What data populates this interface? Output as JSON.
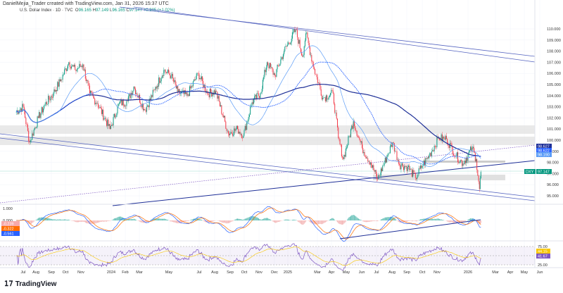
{
  "header": {
    "credit": "DanielMejia_Trader created with TradingView.com, Jan 31, 2026 15:37 UTC",
    "symbol": "U.S. Dollar Index · 1D · TVC",
    "o_label": "O",
    "o": "96.165",
    "h_label": "H",
    "h": "97.149",
    "l_label": "L",
    "l": "96.165",
    "c_label": "C",
    "c": "97.147",
    "change": "+0.985 (+1.02%)"
  },
  "logo": {
    "text": "TradingView"
  },
  "colors": {
    "up": "#089981",
    "down": "#f23645",
    "ma_fast": "#5b9cf6",
    "ma_slow": "#1e2f97",
    "channel": "#5564c0",
    "rsi": "#7e57c2",
    "rsi_ma": "#f7c600",
    "macd": "#2962ff",
    "signal": "#ff6d00"
  },
  "chart_data": {
    "type": "candlestick",
    "x": [
      "2023-06-15",
      "2023-07-01",
      "2023-07-14",
      "2023-08-01",
      "2023-08-15",
      "2023-09-01",
      "2023-09-15",
      "2023-10-03",
      "2023-10-16",
      "2023-11-01",
      "2023-11-15",
      "2023-12-01",
      "2023-12-27",
      "2024-01-15",
      "2024-02-01",
      "2024-02-14",
      "2024-03-08",
      "2024-03-28",
      "2024-04-16",
      "2024-05-01",
      "2024-05-15",
      "2024-06-03",
      "2024-06-26",
      "2024-07-15",
      "2024-08-01",
      "2024-08-27",
      "2024-09-15",
      "2024-09-27",
      "2024-10-15",
      "2024-11-01",
      "2024-11-15",
      "2024-12-01",
      "2024-12-20",
      "2025-01-13",
      "2025-01-27",
      "2025-02-03",
      "2025-02-20",
      "2025-03-10",
      "2025-03-31",
      "2025-04-11",
      "2025-04-21",
      "2025-05-12",
      "2025-05-30",
      "2025-06-16",
      "2025-07-01",
      "2025-07-20",
      "2025-08-01",
      "2025-08-15",
      "2025-09-01",
      "2025-09-17",
      "2025-10-01",
      "2025-10-15",
      "2025-11-04",
      "2025-11-20",
      "2025-12-10",
      "2025-12-24",
      "2026-01-12",
      "2026-01-20",
      "2026-01-27",
      "2026-01-30"
    ],
    "close": [
      102.5,
      103.0,
      99.8,
      102.0,
      103.2,
      104.2,
      105.3,
      107.0,
      106.3,
      106.8,
      104.2,
      103.3,
      101.0,
      103.3,
      103.5,
      104.8,
      102.7,
      104.5,
      106.3,
      105.8,
      104.3,
      104.0,
      106.0,
      104.2,
      104.4,
      100.6,
      101.0,
      100.4,
      103.4,
      104.2,
      107.0,
      105.8,
      108.0,
      109.9,
      107.5,
      109.6,
      106.4,
      103.8,
      104.2,
      100.2,
      98.3,
      101.7,
      99.3,
      98.0,
      96.5,
      98.5,
      99.8,
      97.8,
      97.6,
      96.6,
      97.7,
      98.6,
      100.2,
      100.1,
      98.6,
      97.9,
      99.3,
      98.3,
      95.6,
      97.147
    ],
    "price_ticks": [
      "110.000",
      "109.000",
      "108.000",
      "107.000",
      "106.000",
      "105.000",
      "104.000",
      "103.000",
      "102.000",
      "101.000",
      "100.000",
      "99.000",
      "98.000",
      "97.000",
      "96.000",
      "95.000"
    ],
    "ylim": [
      94.5,
      111
    ],
    "time_ticks": [
      "Jul",
      "Aug",
      "Sep",
      "Oct",
      "Nov",
      "2024",
      "Feb",
      "Mar",
      "May",
      "Jul",
      "Aug",
      "Sep",
      "Oct",
      "Nov",
      "Dec",
      "2025",
      "Mar",
      "Apr",
      "May",
      "Jun",
      "Jul",
      "Aug",
      "Sep",
      "Oct",
      "Nov",
      "2026",
      "Mar",
      "Apr",
      "May",
      "Jun"
    ],
    "price_labels": [
      {
        "text": "98.627",
        "color": "#1e2f97"
      },
      {
        "text": "98.622",
        "color": "#2962ff"
      },
      {
        "text": "98.190",
        "color": "#5b9cf6"
      }
    ],
    "last_price": {
      "symbol": "DXY",
      "value": "97.147"
    },
    "macd": {
      "ticks": [
        "1.000",
        "0.000"
      ],
      "values": [
        {
          "text": "-0.239",
          "color": "#f7a9a9"
        },
        {
          "text": "-0.322",
          "color": "#ff6d00"
        },
        {
          "text": "-0.561",
          "color": "#2962ff"
        }
      ]
    },
    "rsi": {
      "ticks": [
        "75.00",
        "25.00"
      ],
      "values": [
        {
          "text": "44.15",
          "color": "#f7c600"
        },
        {
          "text": "41.67",
          "color": "#7e57c2"
        }
      ]
    }
  }
}
